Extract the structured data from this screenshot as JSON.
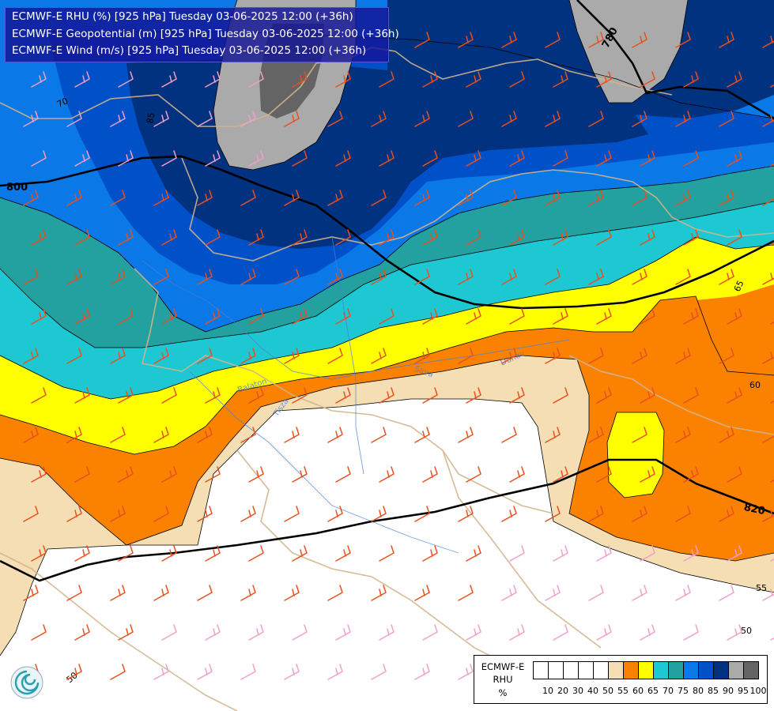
{
  "title": {
    "line1": "ECMWF-E RHU (%) [925 hPa] Tuesday 03-06-2025 12:00 (+36h)",
    "line2": "ECMWF-E Geopotential (m) [925 hPa] Tuesday 03-06-2025 12:00 (+36h)",
    "line3": "ECMWF-E Wind (m/s) [925 hPa] Tuesday 03-06-2025 12:00 (+36h)"
  },
  "geopotential_labels": [
    "800",
    "780",
    "820"
  ],
  "rhu_contour_labels": [
    "70",
    "85",
    "65",
    "60",
    "55",
    "50",
    "50"
  ],
  "rivers": [
    "Balaton",
    "Tisza",
    "Dunav",
    "Sava"
  ],
  "legend": {
    "name_line1": "ECMWF-E",
    "name_line2": "RHU",
    "unit": "%",
    "ticks": [
      "10",
      "20",
      "30",
      "40",
      "50",
      "55",
      "60",
      "65",
      "70",
      "75",
      "80",
      "85",
      "90",
      "95",
      "100"
    ],
    "colors": [
      "#ffffff",
      "#ffffff",
      "#ffffff",
      "#ffffff",
      "#ffffff",
      "#f5deb3",
      "#fa8200",
      "#ffff00",
      "#1ec8d2",
      "#23a0a0",
      "#0a78e6",
      "#0050c8",
      "#003280",
      "#aaaaaa",
      "#646464"
    ]
  },
  "colors": {
    "rhu_50": "#ffffff",
    "rhu_55": "#f5deb3",
    "rhu_60": "#fa8200",
    "rhu_65": "#ffff00",
    "rhu_70": "#1ec8d2",
    "rhu_75": "#23a0a0",
    "rhu_80": "#0a78e6",
    "rhu_85": "#0050c8",
    "rhu_90": "#003280",
    "rhu_95": "#aaaaaa",
    "rhu_100": "#646464",
    "wind_barb_orange": "#e8501e",
    "wind_barb_pink": "#f0a0c8",
    "border": "#d2b48c"
  }
}
